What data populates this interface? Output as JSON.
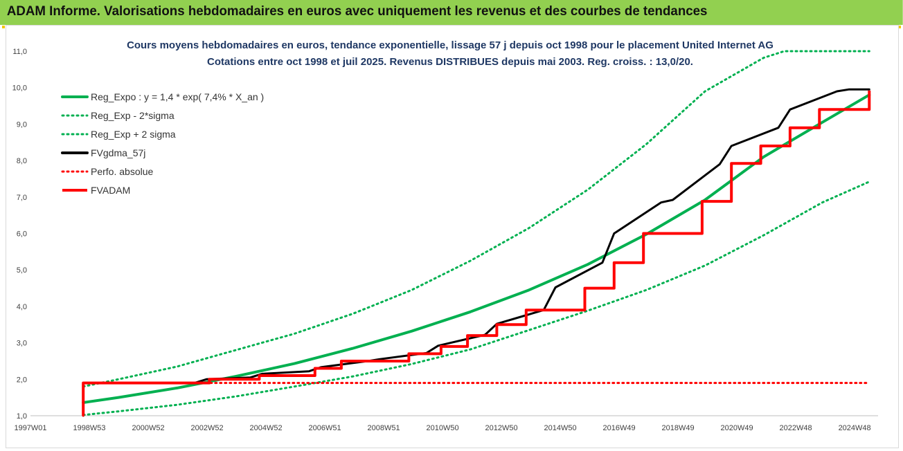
{
  "header": {
    "title": "ADAM Informe. Valorisations hebdomadaires en euros avec uniquement les revenus et des courbes de tendances"
  },
  "chart_data": {
    "type": "line",
    "title": "Cours moyens hebdomadaires en euros, tendance exponentielle, lissage 57 j depuis oct 1998 pour le placement United Internet AG",
    "subtitle": "Cotations entre oct 1998 et juil 2025. Revenus DISTRIBUES depuis mai 2003. Reg. croiss. : 13,0/20.",
    "xlabel": "",
    "ylabel": "",
    "x_tick_labels": [
      "1997W01",
      "1998W53",
      "2000W52",
      "2002W52",
      "2004W52",
      "2006W51",
      "2008W51",
      "2010W50",
      "2012W50",
      "2014W50",
      "2016W49",
      "2018W49",
      "2020W49",
      "2022W48",
      "2024W48"
    ],
    "x_range": [
      1997.0,
      2025.9
    ],
    "ylim": [
      1.0,
      11.0
    ],
    "y_ticks": [
      "1,0",
      "2,0",
      "3,0",
      "4,0",
      "5,0",
      "6,0",
      "7,0",
      "8,0",
      "9,0",
      "10,0",
      "11,0"
    ],
    "grid": false,
    "legend_position": "top-left",
    "series": [
      {
        "name": "Reg_Expo : y = 1,4 * exp( 7,4% *  X_an )",
        "color": "#00b050",
        "style": "solid",
        "x": [
          1998.8,
          2000.0,
          2002.0,
          2004.0,
          2006.0,
          2008.0,
          2010.0,
          2012.0,
          2014.0,
          2016.0,
          2018.0,
          2020.0,
          2022.0,
          2024.0,
          2025.6
        ],
        "y": [
          1.36,
          1.5,
          1.76,
          2.08,
          2.43,
          2.85,
          3.32,
          3.85,
          4.45,
          5.15,
          5.98,
          6.92,
          8.1,
          9.05,
          9.8
        ]
      },
      {
        "name": "Reg_Exp - 2*sigma",
        "color": "#00b050",
        "style": "dotted",
        "x": [
          1998.8,
          2000.0,
          2002.0,
          2004.0,
          2006.0,
          2008.0,
          2010.0,
          2012.0,
          2014.0,
          2016.0,
          2018.0,
          2020.0,
          2022.0,
          2024.0,
          2025.6
        ],
        "y": [
          1.02,
          1.12,
          1.3,
          1.53,
          1.8,
          2.08,
          2.42,
          2.82,
          3.35,
          3.88,
          4.45,
          5.12,
          5.95,
          6.85,
          7.42
        ]
      },
      {
        "name": "Reg_Exp + 2 sigma",
        "color": "#00b050",
        "style": "dotted",
        "x": [
          1998.8,
          2000.0,
          2002.0,
          2004.0,
          2006.0,
          2008.0,
          2010.0,
          2012.0,
          2014.0,
          2016.0,
          2018.0,
          2020.0,
          2022.0,
          2022.7,
          2025.6
        ],
        "y": [
          1.8,
          2.0,
          2.35,
          2.8,
          3.25,
          3.8,
          4.45,
          5.25,
          6.15,
          7.2,
          8.45,
          9.9,
          10.82,
          11.0,
          11.0
        ]
      },
      {
        "name": "FVgdma_57j",
        "color": "#000000",
        "style": "solid",
        "x": [
          1998.8,
          1998.8,
          2002.6,
          2003.0,
          2004.5,
          2004.9,
          2006.5,
          2006.9,
          2008.5,
          2008.9,
          2010.5,
          2010.9,
          2012.5,
          2012.9,
          2014.5,
          2014.9,
          2016.5,
          2016.9,
          2018.5,
          2018.9,
          2020.5,
          2020.9,
          2022.5,
          2022.9,
          2024.5,
          2024.9,
          2025.6
        ],
        "y": [
          1.0,
          1.9,
          1.9,
          2.0,
          2.05,
          2.15,
          2.22,
          2.33,
          2.5,
          2.55,
          2.72,
          2.92,
          3.22,
          3.52,
          3.9,
          4.52,
          5.2,
          6.0,
          6.85,
          6.92,
          7.9,
          8.4,
          8.9,
          9.4,
          9.9,
          9.95,
          9.95
        ]
      },
      {
        "name": "Perfo. absolue",
        "color": "#ff0000",
        "style": "dotted",
        "x": [
          1998.8,
          1998.8,
          2025.6
        ],
        "y": [
          1.0,
          1.9,
          1.9
        ]
      },
      {
        "name": "FVADAM",
        "color": "#ff0000",
        "style": "step",
        "x": [
          1998.8,
          1998.8,
          2003.1,
          2004.8,
          2006.7,
          2007.6,
          2009.9,
          2011.0,
          2011.9,
          2012.9,
          2013.9,
          2015.9,
          2016.9,
          2017.9,
          2019.9,
          2020.9,
          2021.9,
          2022.9,
          2023.9,
          2025.6
        ],
        "y": [
          1.0,
          1.9,
          2.0,
          2.1,
          2.3,
          2.5,
          2.7,
          2.9,
          3.2,
          3.5,
          3.9,
          4.5,
          5.2,
          6.0,
          6.88,
          7.92,
          8.4,
          8.9,
          9.4,
          9.92
        ]
      }
    ]
  }
}
